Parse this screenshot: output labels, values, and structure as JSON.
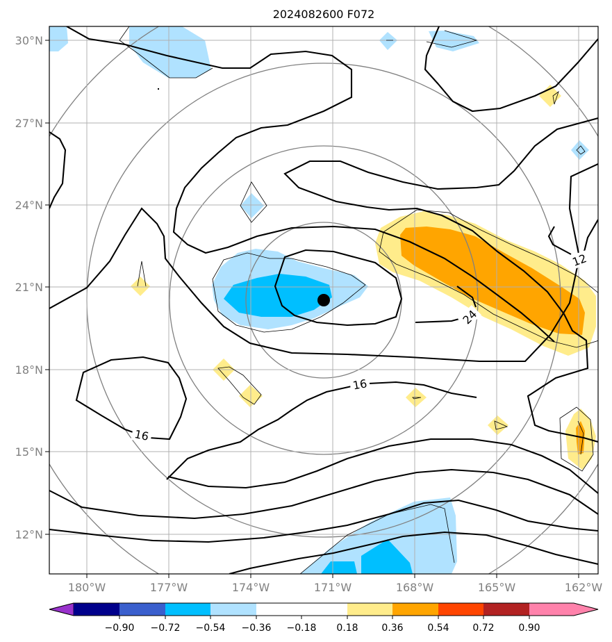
{
  "title": "2024082600 F072",
  "lat_labels": [
    "30°N",
    "27°N",
    "24°N",
    "21°N",
    "18°N",
    "15°N",
    "12°N"
  ],
  "lon_labels": [
    "180°W",
    "177°W",
    "174°W",
    "171°W",
    "168°W",
    "165°W",
    "162°W"
  ],
  "contour_labels": [
    "12",
    "24",
    "16",
    "16"
  ],
  "colorbar": {
    "ticks": [
      "−0.90",
      "−0.72",
      "−0.54",
      "−0.36",
      "−0.18",
      "0.18",
      "0.36",
      "0.54",
      "0.72",
      "0.90"
    ],
    "colors": [
      "#9932cc",
      "#00008b",
      "#3a5fcd",
      "#00bfff",
      "#b0e2ff",
      "#ffffff",
      "#ffec8b",
      "#ffa500",
      "#ff4500",
      "#b22222",
      "#ff82ab"
    ]
  },
  "storm_center": {
    "lat": "20.6°N",
    "lon": "170.8°W"
  }
}
